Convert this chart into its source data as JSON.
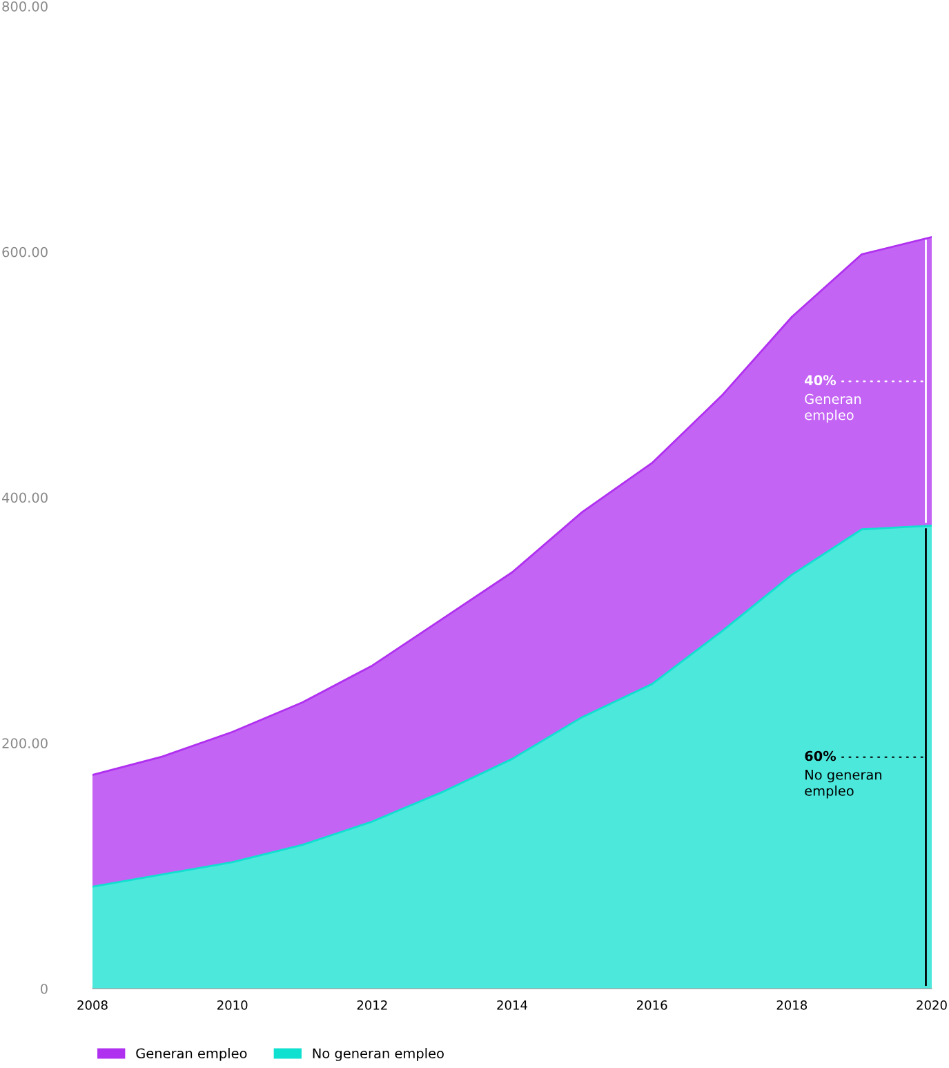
{
  "chart_data": {
    "type": "area",
    "stacked": true,
    "x": [
      2008,
      2009,
      2010,
      2011,
      2012,
      2013,
      2014,
      2015,
      2016,
      2017,
      2018,
      2019,
      2020
    ],
    "series": [
      {
        "name": "No generan empleo",
        "color": "#10e0d0",
        "values": [
          83,
          93,
          103,
          117,
          136,
          160,
          187,
          221,
          248,
          291,
          337,
          374,
          377
        ]
      },
      {
        "name": "Generan empleo",
        "color": "#b030f0",
        "values": [
          91,
          96,
          106,
          116,
          127,
          141,
          152,
          167,
          180,
          192,
          210,
          224,
          235
        ]
      }
    ],
    "xlim": [
      2008,
      2020
    ],
    "xticks": [
      2008,
      2010,
      2012,
      2014,
      2016,
      2018,
      2020
    ],
    "ylim": [
      0,
      800
    ],
    "yticks": [
      0,
      {
        "value": 200,
        "label": "200.00"
      },
      {
        "value": 400,
        "label": "400.00"
      },
      {
        "value": 600,
        "label": "600.00"
      },
      {
        "value": 800,
        "label": "800.00"
      }
    ],
    "annotations": [
      "40%\nGeneran\nempleo",
      "60%\nNo generan\nempleo"
    ],
    "legend": "bottom left",
    "grid": false
  }
}
